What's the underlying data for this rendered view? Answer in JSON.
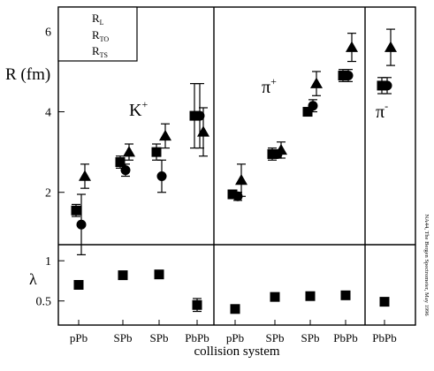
{
  "chart_data": {
    "type": "scatter",
    "xlabel": "collision system",
    "ylabel_top": "R (fm)",
    "ylabel_bottom": "λ",
    "categories": [
      "pPb",
      "SPb",
      "SPb",
      "PbPb",
      "pPb",
      "SPb",
      "SPb",
      "PbPb",
      "PbPb"
    ],
    "top_panel": {
      "ylim": [
        0.7,
        6.6
      ],
      "yticks": [
        2,
        4,
        6
      ],
      "legend": {
        "placement": "top-left",
        "items": [
          {
            "marker": "triangle",
            "label_main": "R",
            "label_sub": "L"
          },
          {
            "marker": "square",
            "label_main": "R",
            "label_sub": "TO"
          },
          {
            "marker": "circle",
            "label_main": "R",
            "label_sub": "TS"
          }
        ]
      },
      "groups": [
        {
          "label_main": "K",
          "label_sup": "+",
          "x": [
            1,
            2,
            3,
            4
          ],
          "R_L": {
            "values": [
              2.4,
              3.0,
              3.4,
              3.5
            ],
            "errors": [
              0.3,
              0.2,
              0.3,
              0.6
            ]
          },
          "R_TO": {
            "values": [
              1.55,
              2.75,
              3.0,
              3.9
            ],
            "errors": [
              0.15,
              0.15,
              0.2,
              0.8
            ]
          },
          "R_TS": {
            "values": [
              1.2,
              2.55,
              2.4,
              3.9
            ],
            "errors": [
              0.75,
              0.15,
              0.4,
              0.8
            ]
          }
        },
        {
          "label_main": "π",
          "label_sup": "+",
          "x": [
            5,
            6,
            7,
            8
          ],
          "R_L": {
            "values": [
              2.3,
              3.05,
              4.7,
              5.6
            ],
            "errors": [
              0.4,
              0.2,
              0.3,
              0.35
            ]
          },
          "R_TO": {
            "values": [
              1.95,
              2.95,
              4.0,
              4.9
            ],
            "errors": [
              0.1,
              0.15,
              0.1,
              0.15
            ]
          },
          "R_TS": {
            "values": [
              1.9,
              2.95,
              4.15,
              4.9
            ],
            "errors": [
              0.1,
              0.1,
              0.15,
              0.15
            ]
          }
        },
        {
          "label_main": "π",
          "label_sup": "-",
          "x": [
            9
          ],
          "R_L": {
            "values": [
              5.6
            ],
            "errors": [
              0.45
            ]
          },
          "R_TO": {
            "values": [
              4.65
            ],
            "errors": [
              0.2
            ]
          },
          "R_TS": {
            "values": [
              4.65
            ],
            "errors": [
              0.2
            ]
          }
        }
      ]
    },
    "bottom_panel": {
      "ylim": [
        0.2,
        1.2
      ],
      "yticks": [
        0.5,
        1
      ],
      "lambda": {
        "x": [
          1,
          2,
          3,
          4,
          5,
          6,
          7,
          8,
          9
        ],
        "values": [
          0.7,
          0.82,
          0.83,
          0.45,
          0.4,
          0.55,
          0.56,
          0.57,
          0.49
        ],
        "errors": [
          0,
          0,
          0,
          0.08,
          0,
          0,
          0,
          0,
          0
        ]
      }
    },
    "side_text": "NA44, The Bergen Spectrometer, May 1996"
  }
}
